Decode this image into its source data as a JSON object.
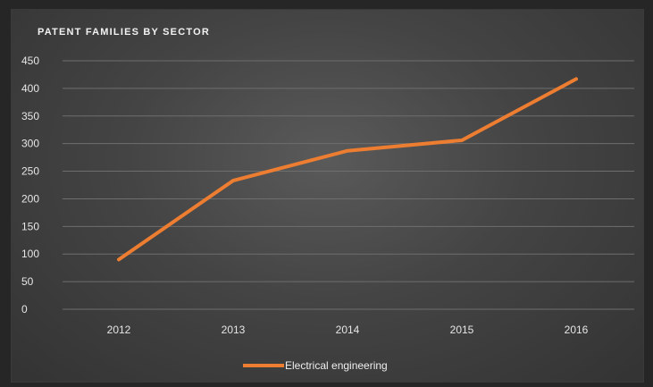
{
  "chart_data": {
    "type": "line",
    "title": "PATENT FAMILIES BY SECTOR",
    "xlabel": "",
    "ylabel": "",
    "categories": [
      "2012",
      "2013",
      "2014",
      "2015",
      "2016"
    ],
    "series": [
      {
        "name": "Electrical engineering",
        "values": [
          90,
          233,
          287,
          306,
          417
        ],
        "color": "#ed7d31"
      }
    ],
    "ylim": [
      0,
      450
    ],
    "yticks": [
      "0",
      "50",
      "100",
      "150",
      "200",
      "250",
      "300",
      "350",
      "400",
      "450"
    ],
    "grid": true,
    "legend_position": "bottom"
  },
  "colors": {
    "background": "#444444",
    "gridline": "#6e6e6e",
    "text": "#e6e6e6"
  }
}
